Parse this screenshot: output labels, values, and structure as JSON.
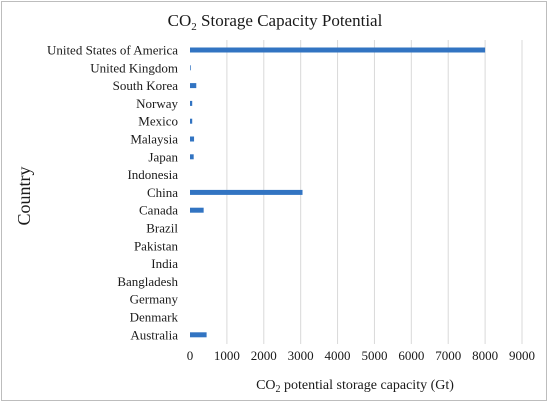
{
  "chart_data": {
    "type": "bar",
    "orientation": "horizontal",
    "title": {
      "prefix": "CO",
      "subscript": "2",
      "suffix": " Storage Capacity Potential"
    },
    "xlabel": {
      "prefix": "CO",
      "subscript": "2",
      "suffix": " potential storage capacity (Gt)"
    },
    "ylabel": "Country",
    "xlim": [
      0,
      9000
    ],
    "xticks": [
      "0",
      "1000",
      "2000",
      "3000",
      "4000",
      "5000",
      "6000",
      "7000",
      "8000",
      "9000"
    ],
    "grid": "vertical",
    "color": "#3274c2",
    "categories": [
      "United States of America",
      "United Kingdom",
      "South Korea",
      "Norway",
      "Mexico",
      "Malaysia",
      "Japan",
      "Indonesia",
      "China",
      "Canada",
      "Brazil",
      "Pakistan",
      "India",
      "Bangladesh",
      "Germany",
      "Denmark",
      "Australia"
    ],
    "values": [
      8000,
      20,
      170,
      60,
      60,
      110,
      100,
      0,
      3050,
      370,
      0,
      0,
      0,
      0,
      0,
      0,
      450
    ]
  }
}
